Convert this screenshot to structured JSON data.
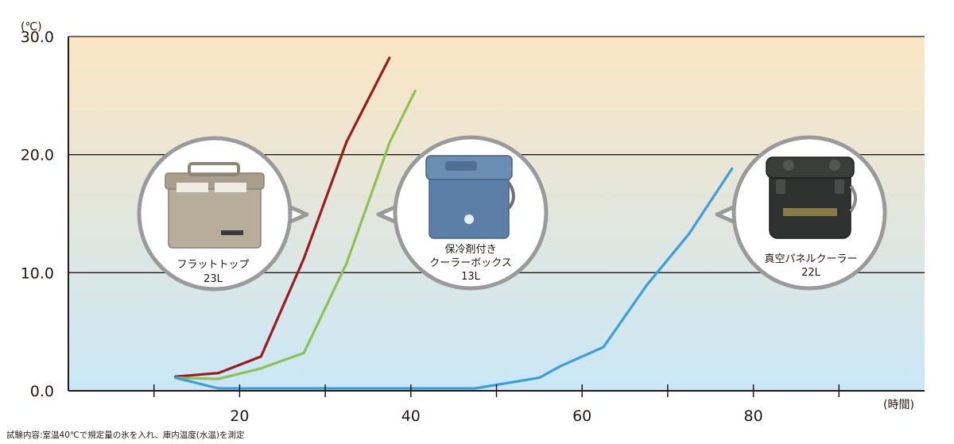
{
  "chart_data": {
    "type": "line",
    "ylabel": "(℃)",
    "xlabel": "(時間)",
    "xlim": [
      0,
      100
    ],
    "ylim": [
      0,
      30
    ],
    "xticks": [
      10,
      20,
      30,
      40,
      50,
      60,
      70,
      80,
      90
    ],
    "xtick_labels": [
      {
        "x": 20,
        "label": "20"
      },
      {
        "x": 40,
        "label": "40"
      },
      {
        "x": 60,
        "label": "60"
      },
      {
        "x": 80,
        "label": "80"
      }
    ],
    "yticks": [
      {
        "y": 0,
        "label": "0.0"
      },
      {
        "y": 10,
        "label": "10.0"
      },
      {
        "y": 20,
        "label": "20.0"
      },
      {
        "y": 30,
        "label": "30.0"
      }
    ],
    "grid": "horizontal",
    "series": [
      {
        "name": "フラットトップ 23L",
        "color": "#9b1c1f",
        "x": [
          12.5,
          17.5,
          22.5,
          27.5,
          32.5,
          37.5
        ],
        "y": [
          1.2,
          1.5,
          2.9,
          11.2,
          21.1,
          28.2
        ]
      },
      {
        "name": "保冷剤付き クーラーボックス 13L",
        "color": "#8dc252",
        "x": [
          12.5,
          17.5,
          22.5,
          27.5,
          32.5,
          37.5,
          40.5
        ],
        "y": [
          1.1,
          1.0,
          1.9,
          3.2,
          10.8,
          21.0,
          25.4
        ]
      },
      {
        "name": "真空パネルクーラー 22L",
        "color": "#3d9ed8",
        "x": [
          12.5,
          17.5,
          22.5,
          27.5,
          32.5,
          37.5,
          42.5,
          47.5,
          55,
          57.5,
          62.5,
          67.5,
          72.5,
          77.5
        ],
        "y": [
          1.1,
          0.2,
          0.2,
          0.2,
          0.2,
          0.2,
          0.2,
          0.2,
          1.1,
          2.1,
          3.7,
          8.9,
          13.3,
          18.8
        ]
      }
    ],
    "annotations": [
      {
        "lines": [
          "フラットトップ",
          "23L"
        ],
        "icon": "flat-top-cooler-illustration"
      },
      {
        "lines": [
          "保冷剤付き",
          "クーラーボックス",
          "13L"
        ],
        "icon": "blue-cooler-box-illustration"
      },
      {
        "lines": [
          "真空パネルクーラー",
          "22L"
        ],
        "icon": "black-vacuum-cooler-illustration"
      }
    ],
    "background": {
      "top": "#fbe6c3",
      "bottom": "#cae7f7"
    },
    "footnote": "試験内容:室温40℃で規定量の氷を入れ、庫内温度(水温)を測定"
  }
}
